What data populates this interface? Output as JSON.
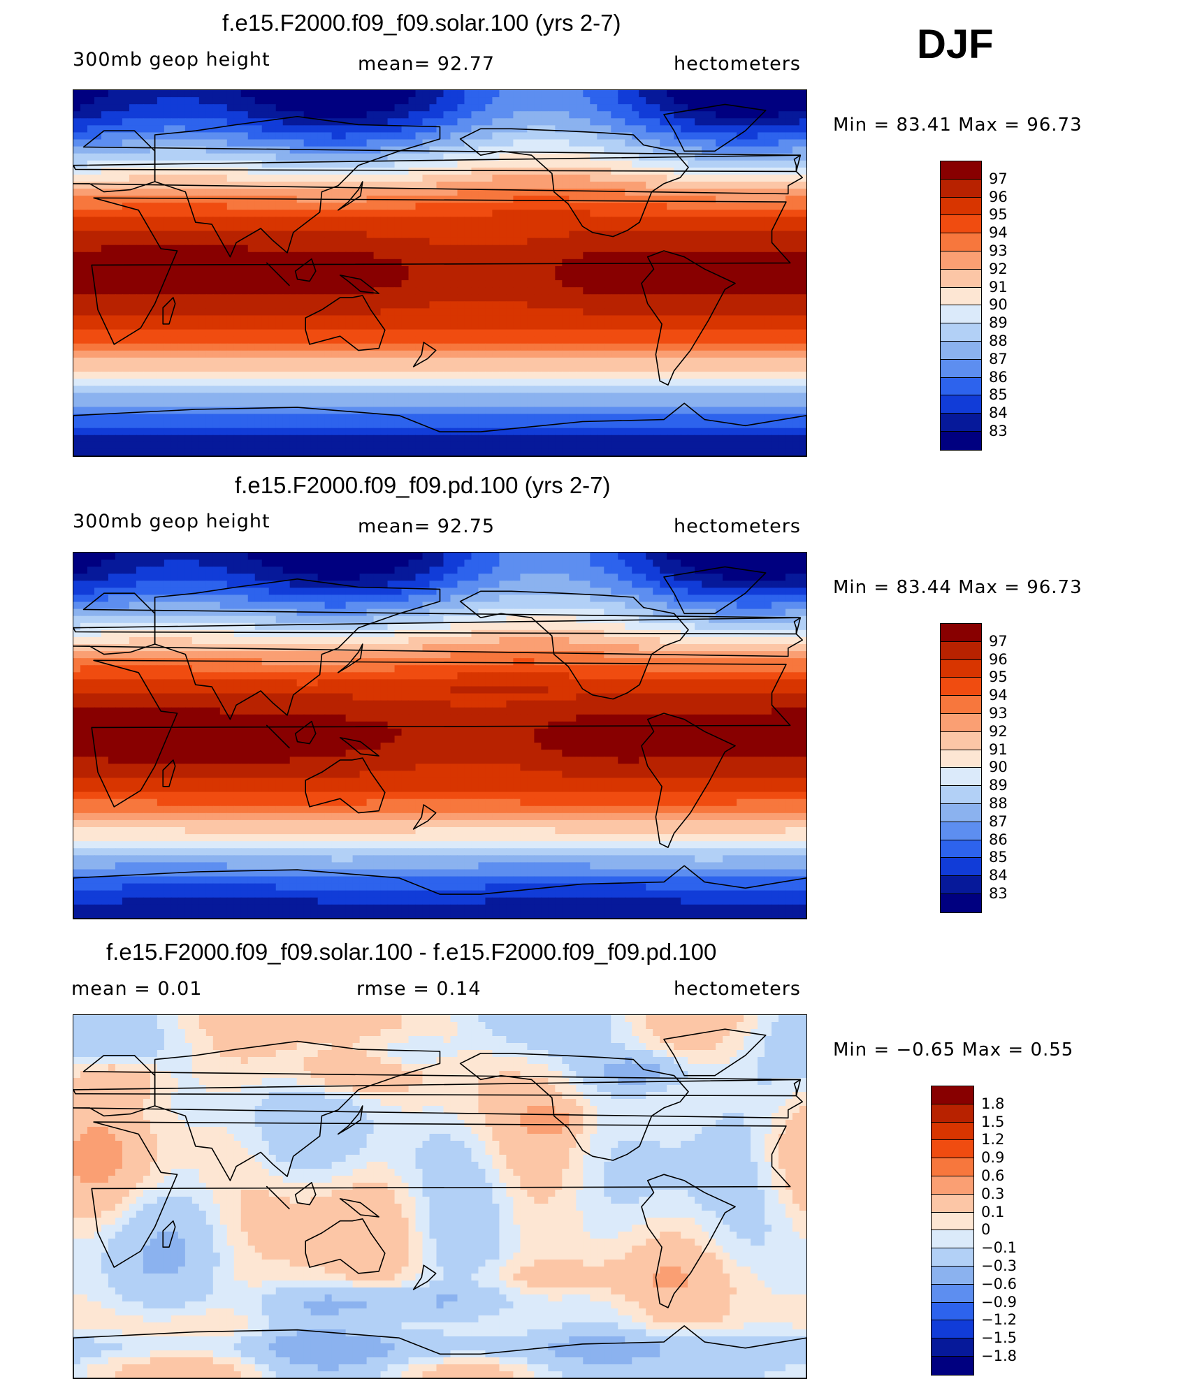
{
  "season": "DJF",
  "panels": [
    {
      "title": "f.e15.F2000.f09_f09.solar.100 (yrs 2-7)",
      "left_text": "300mb  geop  height",
      "center_text": "mean=   92.77",
      "right_text": "hectometers",
      "minmax": "Min  =    83.41  Max  =    96.73",
      "field": "abs",
      "colorbar": {
        "labels": [
          "97",
          "96",
          "95",
          "94",
          "93",
          "92",
          "91",
          "90",
          "89",
          "88",
          "87",
          "86",
          "85",
          "84",
          "83"
        ],
        "colors": [
          "#880000",
          "#b82200",
          "#d83500",
          "#f04c10",
          "#f7773d",
          "#fa9f73",
          "#fcc6a6",
          "#fde6d3",
          "#dbeafa",
          "#b2d0f6",
          "#8bb2ef",
          "#5d8ef0",
          "#2d63ed",
          "#113cd8",
          "#06199a",
          "#000080"
        ]
      }
    },
    {
      "title": "f.e15.F2000.f09_f09.pd.100 (yrs 2-7)",
      "left_text": "300mb  geop  height",
      "center_text": "mean=   92.75",
      "right_text": "hectometers",
      "minmax": "Min  =    83.44  Max  =    96.73",
      "field": "abs",
      "colorbar": {
        "labels": [
          "97",
          "96",
          "95",
          "94",
          "93",
          "92",
          "91",
          "90",
          "89",
          "88",
          "87",
          "86",
          "85",
          "84",
          "83"
        ],
        "colors": [
          "#880000",
          "#b82200",
          "#d83500",
          "#f04c10",
          "#f7773d",
          "#fa9f73",
          "#fcc6a6",
          "#fde6d3",
          "#dbeafa",
          "#b2d0f6",
          "#8bb2ef",
          "#5d8ef0",
          "#2d63ed",
          "#113cd8",
          "#06199a",
          "#000080"
        ]
      }
    },
    {
      "title": "f.e15.F2000.f09_f09.solar.100 - f.e15.F2000.f09_f09.pd.100",
      "left_text": "mean  =     0.01",
      "center_text": "rmse  =     0.14",
      "right_text": "hectometers",
      "minmax": "Min  =   −0.65  Max  =      0.55",
      "field": "diff",
      "colorbar": {
        "labels": [
          "1.8",
          "1.5",
          "1.2",
          "0.9",
          "0.6",
          "0.3",
          "0.1",
          "0",
          "−0.1",
          "−0.3",
          "−0.6",
          "−0.9",
          "−1.2",
          "−1.5",
          "−1.8"
        ],
        "colors": [
          "#880000",
          "#b82200",
          "#d83500",
          "#f04c10",
          "#f7773d",
          "#fa9f73",
          "#fcc6a6",
          "#fde6d3",
          "#dbeafa",
          "#b2d0f6",
          "#8bb2ef",
          "#5d8ef0",
          "#2d63ed",
          "#113cd8",
          "#06199a",
          "#000080"
        ]
      }
    }
  ]
}
